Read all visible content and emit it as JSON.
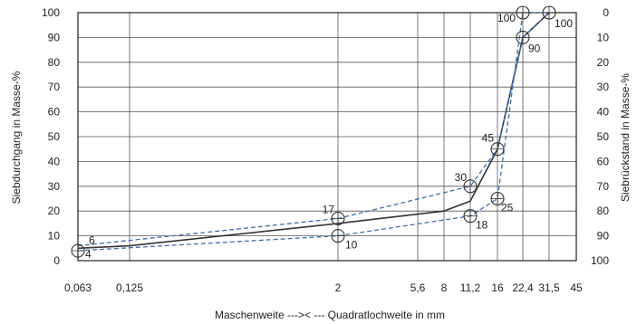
{
  "chart_data": {
    "type": "line",
    "xlabel": "Maschenweite --->< --- Quadratlochweite in mm",
    "ylabel_left": "Siebdurchgang in Masse-%",
    "ylabel_right": "Siebrückstand in Masse-%",
    "ylim": [
      0,
      100
    ],
    "y_ticks_left": [
      "0",
      "10",
      "20",
      "30",
      "40",
      "50",
      "60",
      "70",
      "80",
      "90",
      "100"
    ],
    "y_ticks_right": [
      "100",
      "90",
      "80",
      "70",
      "60",
      "50",
      "40",
      "30",
      "20",
      "10",
      "0"
    ],
    "x_scale": "log",
    "x_ticks": [
      "0,063",
      "0,125",
      "2",
      "5,6",
      "8",
      "11,2",
      "16",
      "22,4",
      "31,5",
      "45"
    ],
    "x_tick_values": [
      0.063,
      0.125,
      2,
      5.6,
      8,
      11.2,
      16,
      22.4,
      31.5,
      45
    ],
    "grid": true,
    "series": [
      {
        "style": "solid",
        "color": "#333333",
        "x": [
          0.063,
          0.125,
          2,
          8,
          11.2,
          16,
          22.4,
          31.5
        ],
        "y": [
          5,
          6,
          15,
          20,
          24,
          45,
          90,
          100
        ]
      },
      {
        "style": "dashed",
        "color": "#3a6fb0",
        "x": [
          0.063,
          2,
          11.2,
          16,
          22.4,
          31.5
        ],
        "y": [
          6,
          17,
          30,
          45,
          90,
          100
        ]
      },
      {
        "style": "dashed",
        "color": "#3a6fb0",
        "x": [
          0.063,
          2,
          11.2,
          16,
          22.4,
          31.5
        ],
        "y": [
          4,
          10,
          18,
          25,
          100,
          100
        ]
      }
    ],
    "point_labels": [
      {
        "x": 0.063,
        "y": 6,
        "text": "6",
        "circle": false
      },
      {
        "x": 0.063,
        "y": 4,
        "text": "4",
        "circle": true
      },
      {
        "x": 2,
        "y": 17,
        "text": "17",
        "circle": true
      },
      {
        "x": 2,
        "y": 10,
        "text": "10",
        "circle": true
      },
      {
        "x": 11.2,
        "y": 30,
        "text": "30",
        "circle": true
      },
      {
        "x": 11.2,
        "y": 18,
        "text": "18",
        "circle": true
      },
      {
        "x": 16,
        "y": 45,
        "text": "45",
        "circle": true
      },
      {
        "x": 16,
        "y": 25,
        "text": "25",
        "circle": true
      },
      {
        "x": 22.4,
        "y": 90,
        "text": "90",
        "circle": true
      },
      {
        "x": 22.4,
        "y": 100,
        "text": "100",
        "circle": true
      },
      {
        "x": 31.5,
        "y": 100,
        "text": "100",
        "circle": true
      }
    ]
  }
}
